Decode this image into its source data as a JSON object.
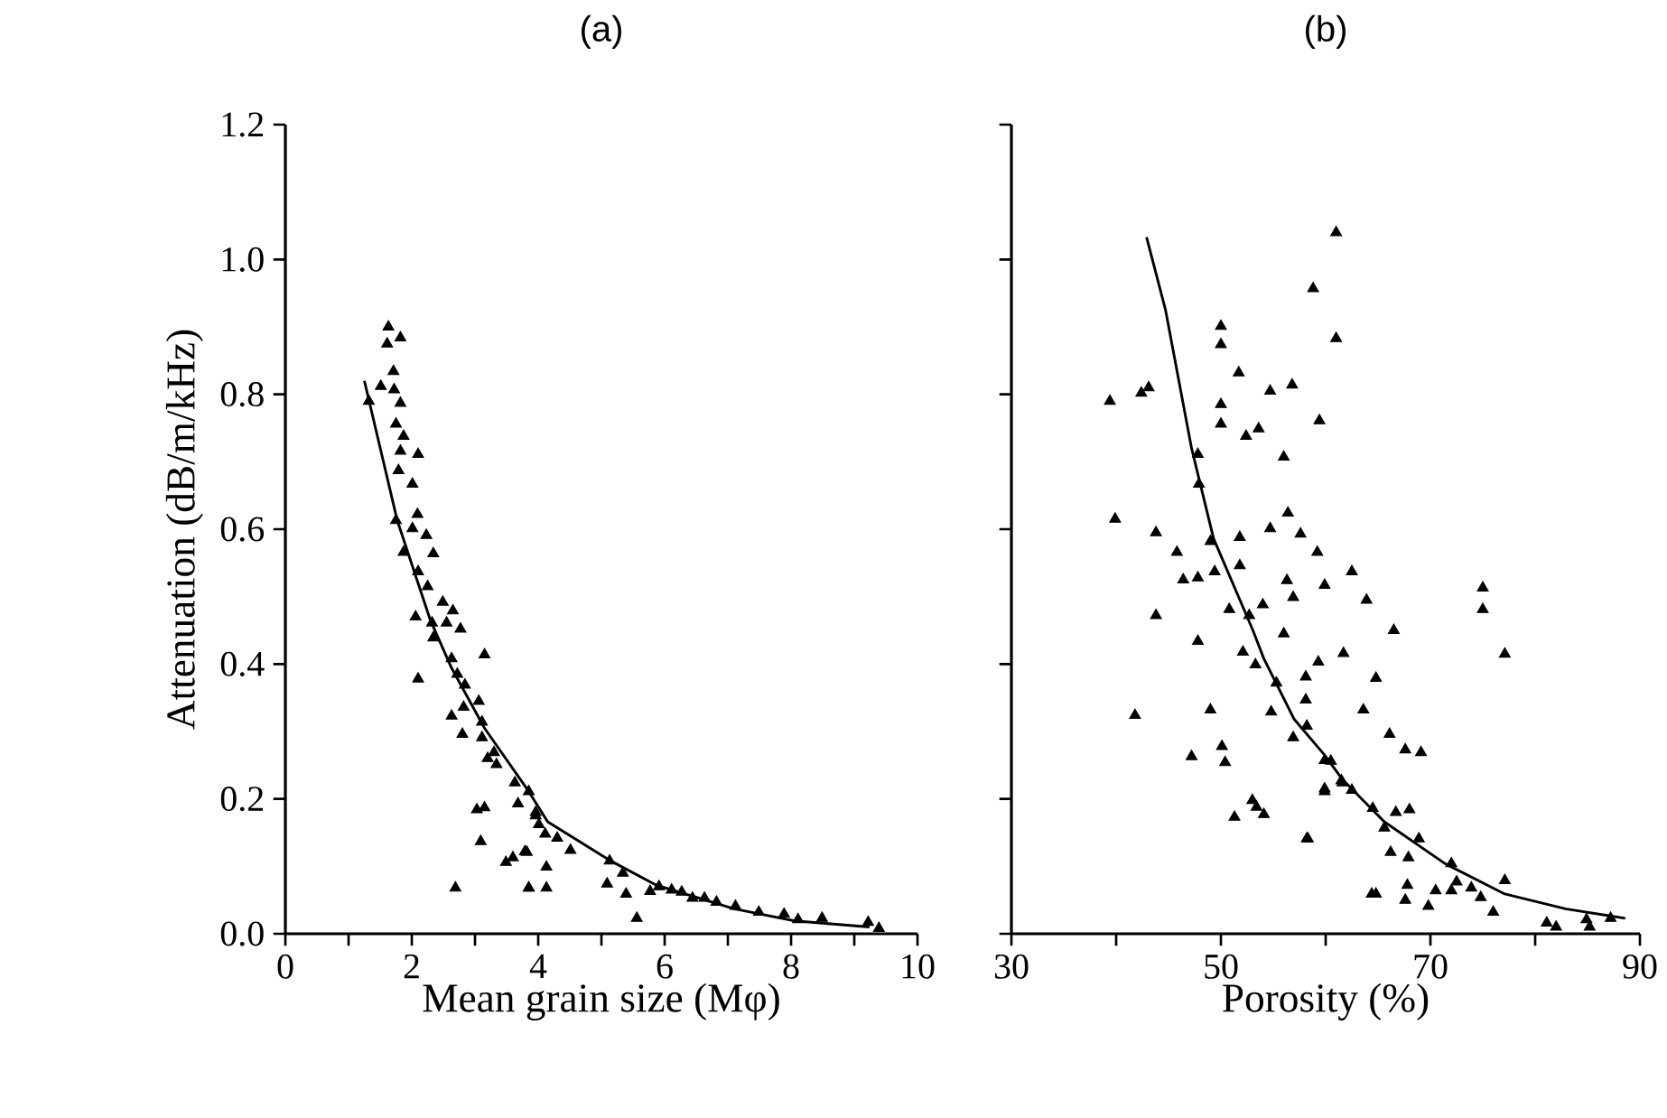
{
  "chart_data": [
    {
      "type": "scatter",
      "title": "(a)",
      "xlabel": "Mean grain size (Mφ)",
      "ylabel": "Attenuation (dB/m/kHz)",
      "xlim": [
        0,
        10
      ],
      "ylim": [
        0,
        1.2
      ],
      "xticks": [
        0,
        {
          "value": 1,
          "label": null
        },
        2,
        {
          "value": 3,
          "label": null
        },
        4,
        {
          "value": 5,
          "label": null
        },
        6,
        {
          "value": 7,
          "label": null
        },
        8,
        {
          "value": 9,
          "label": null
        },
        10
      ],
      "yticks": [
        {
          "value": 0,
          "label": "0.0"
        },
        0.2,
        0.4,
        0.6,
        0.8,
        {
          "value": 1,
          "label": "1.0"
        },
        1.2
      ],
      "series": [
        {
          "type": "scatter",
          "color": "#000000",
          "marker": "triangle",
          "x": [
            1.63,
            1.61,
            1.82,
            1.71,
            1.51,
            1.72,
            1.32,
            1.82,
            1.75,
            1.87,
            2.1,
            1.82,
            1.79,
            2.01,
            2.09,
            1.75,
            2.01,
            2.23,
            1.87,
            2.34,
            2.1,
            2.25,
            2.49,
            2.65,
            2.06,
            2.32,
            2.55,
            2.77,
            2.34,
            3.15,
            2.63,
            2.72,
            2.1,
            2.84,
            3.06,
            2.82,
            2.63,
            3.11,
            2.8,
            3.11,
            3.3,
            3.2,
            3.34,
            3.63,
            3.85,
            3.03,
            3.15,
            3.68,
            3.96,
            3.09,
            3.49,
            3.6,
            3.79,
            2.69,
            3.85,
            3.96,
            4.01,
            4.11,
            4.3,
            4.51,
            3.82,
            4.13,
            3.85,
            4.13,
            5.13,
            5.34,
            5.09,
            5.39,
            5.56,
            5.77,
            5.91,
            6.11,
            6.27,
            6.44,
            6.63,
            6.82,
            7.12,
            7.49,
            7.89,
            8.11,
            8.49,
            9.22,
            9.39
          ],
          "values": [
            0.9,
            0.875,
            0.884,
            0.834,
            0.812,
            0.807,
            0.79,
            0.787,
            0.756,
            0.738,
            0.711,
            0.716,
            0.687,
            0.667,
            0.622,
            0.613,
            0.601,
            0.591,
            0.566,
            0.564,
            0.537,
            0.515,
            0.492,
            0.479,
            0.47,
            0.461,
            0.461,
            0.452,
            0.439,
            0.414,
            0.408,
            0.385,
            0.378,
            0.369,
            0.345,
            0.336,
            0.323,
            0.314,
            0.296,
            0.291,
            0.269,
            0.26,
            0.251,
            0.224,
            0.211,
            0.184,
            0.187,
            0.193,
            0.175,
            0.137,
            0.106,
            0.113,
            0.122,
            0.068,
            0.068,
            0.18,
            0.162,
            0.148,
            0.142,
            0.124,
            0.121,
            0.099,
            0.068,
            0.068,
            0.108,
            0.09,
            0.074,
            0.059,
            0.023,
            0.063,
            0.07,
            0.065,
            0.062,
            0.053,
            0.053,
            0.047,
            0.041,
            0.032,
            0.029,
            0.021,
            0.023,
            0.017,
            0.008
          ]
        },
        {
          "type": "line",
          "color": "#000000",
          "marker": "none",
          "x": [
            1.25,
            1.77,
            2.29,
            2.63,
            3.15,
            3.85,
            4.15,
            5.11,
            5.87,
            7.1,
            8.06,
            9.24
          ],
          "values": [
            0.82,
            0.613,
            0.466,
            0.394,
            0.305,
            0.211,
            0.166,
            0.11,
            0.072,
            0.037,
            0.019,
            0.01
          ]
        }
      ]
    },
    {
      "type": "scatter",
      "title": "(b)",
      "xlabel": "Porosity (%)",
      "xlim": [
        30,
        90
      ],
      "ylim": [
        0,
        1.2
      ],
      "xticks": [
        30,
        {
          "value": 40,
          "label": null
        },
        50,
        {
          "value": 60,
          "label": null
        },
        70,
        {
          "value": 80,
          "label": null
        },
        90
      ],
      "yticks": [
        0,
        0.2,
        0.4,
        0.6,
        0.8,
        1,
        1.2
      ],
      "tick_labels": "x",
      "series": [
        {
          "type": "scatter",
          "color": "#000000",
          "marker": "triangle",
          "x": [
            61.0,
            58.8,
            61.0,
            50.0,
            50.0,
            51.7,
            54.7,
            56.8,
            39.4,
            42.4,
            43.1,
            50.0,
            50.0,
            52.4,
            53.6,
            59.4,
            56.0,
            47.8,
            47.9,
            39.9,
            43.8,
            45.8,
            49.0,
            51.8,
            54.7,
            56.4,
            57.6,
            59.2,
            46.4,
            47.8,
            49.4,
            51.8,
            56.3,
            56.9,
            59.9,
            62.5,
            63.9,
            43.8,
            50.8,
            52.7,
            54.0,
            52.1,
            47.8,
            56.0,
            53.3,
            59.3,
            61.7,
            58.1,
            55.3,
            58.1,
            54.8,
            63.6,
            41.8,
            49.0,
            56.9,
            58.2,
            47.2,
            50.1,
            50.4,
            59.9,
            59.9,
            61.5,
            62.5,
            53.0,
            53.4,
            54.1,
            51.3,
            58.2,
            64.4,
            75.0,
            75.0,
            77.1,
            66.5,
            64.8,
            66.1,
            67.6,
            69.1,
            60.5,
            61.6,
            59.9,
            64.5,
            66.7,
            68.0,
            65.6,
            68.9,
            66.2,
            67.9,
            72.0,
            58.3,
            64.8,
            67.8,
            67.6,
            69.8,
            70.5,
            72.0,
            72.5,
            73.9,
            74.8,
            76.0,
            77.1,
            81.1,
            82.0,
            84.9,
            85.2,
            87.2
          ],
          "values": [
            1.04,
            0.957,
            0.883,
            0.901,
            0.874,
            0.832,
            0.805,
            0.814,
            0.79,
            0.802,
            0.81,
            0.785,
            0.756,
            0.738,
            0.749,
            0.761,
            0.707,
            0.711,
            0.667,
            0.615,
            0.595,
            0.566,
            0.582,
            0.588,
            0.601,
            0.624,
            0.593,
            0.566,
            0.525,
            0.528,
            0.537,
            0.546,
            0.524,
            0.499,
            0.517,
            0.537,
            0.495,
            0.472,
            0.481,
            0.472,
            0.488,
            0.418,
            0.434,
            0.445,
            0.399,
            0.403,
            0.416,
            0.381,
            0.372,
            0.347,
            0.329,
            0.332,
            0.324,
            0.332,
            0.291,
            0.308,
            0.263,
            0.278,
            0.254,
            0.257,
            0.215,
            0.227,
            0.213,
            0.198,
            0.188,
            0.177,
            0.173,
            0.141,
            0.059,
            0.513,
            0.481,
            0.415,
            0.45,
            0.379,
            0.296,
            0.273,
            0.269,
            0.256,
            0.224,
            0.211,
            0.186,
            0.18,
            0.184,
            0.157,
            0.141,
            0.121,
            0.113,
            0.104,
            0.141,
            0.059,
            0.072,
            0.05,
            0.041,
            0.064,
            0.064,
            0.077,
            0.068,
            0.054,
            0.032,
            0.079,
            0.016,
            0.01,
            0.021,
            0.01,
            0.023
          ]
        },
        {
          "type": "line",
          "color": "#000000",
          "marker": "none",
          "x": [
            42.9,
            44.7,
            47.2,
            49.3,
            53.0,
            54.1,
            57.0,
            59.9,
            61.6,
            65.6,
            71.4,
            77.1,
            82.9,
            88.6
          ],
          "values": [
            1.033,
            0.926,
            0.72,
            0.586,
            0.452,
            0.408,
            0.318,
            0.265,
            0.229,
            0.166,
            0.104,
            0.059,
            0.037,
            0.023
          ]
        }
      ]
    }
  ]
}
